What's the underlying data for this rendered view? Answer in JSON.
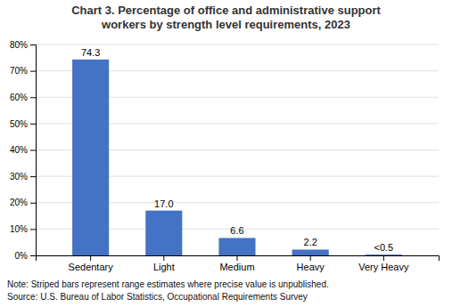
{
  "chart_data": {
    "type": "bar",
    "title": "Chart 3. Percentage of office and administrative support\nworkers by strength level requirements, 2023",
    "categories": [
      "Sedentary",
      "Light",
      "Medium",
      "Heavy",
      "Very Heavy"
    ],
    "values": [
      74.3,
      17.0,
      6.6,
      2.2,
      0.3
    ],
    "value_labels": [
      "74.3",
      "17.0",
      "6.6",
      "2.2",
      "<0.5"
    ],
    "data_labels": true,
    "color": "#4472C4",
    "ylim": [
      0,
      80
    ],
    "yticks": [
      {
        "value": 0,
        "label": "0%"
      },
      {
        "value": 10,
        "label": "10%"
      },
      {
        "value": 20,
        "label": "20%"
      },
      {
        "value": 30,
        "label": "30%"
      },
      {
        "value": 40,
        "label": "40%"
      },
      {
        "value": 50,
        "label": "50%"
      },
      {
        "value": 60,
        "label": "60%"
      },
      {
        "value": 70,
        "label": "70%"
      },
      {
        "value": 80,
        "label": "80%"
      }
    ],
    "grid": true,
    "annotations": [
      "Note: Striped bars represent range estimates where precise value is unpublished.",
      "Source: U.S. Bureau of Labor Statistics, Occupational Requirements Survey"
    ]
  }
}
